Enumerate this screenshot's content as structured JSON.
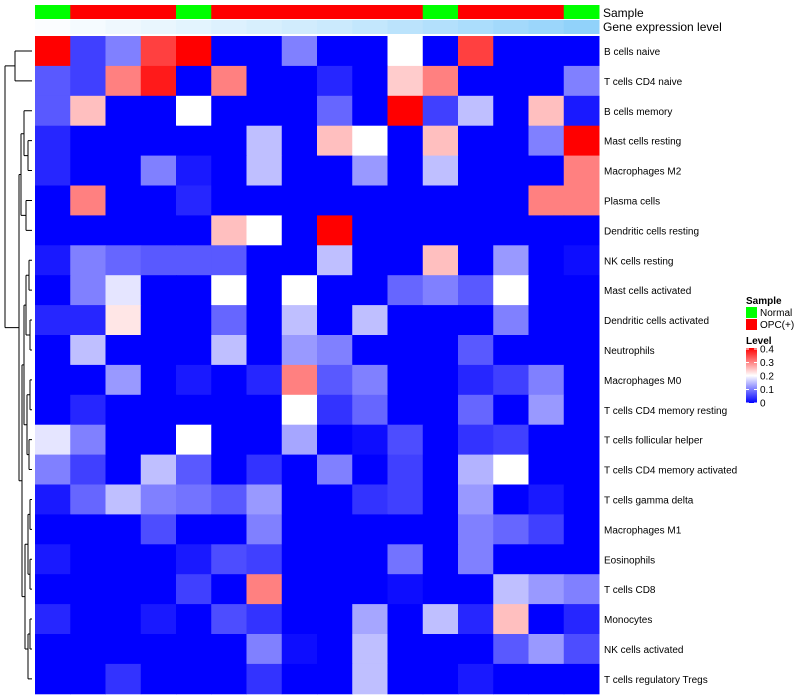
{
  "chart_data": {
    "type": "heatmap",
    "title": "",
    "annotation_tracks": [
      {
        "name": "Sample",
        "values": [
          "Normal",
          "OPC(+)",
          "OPC(+)",
          "OPC(+)",
          "Normal",
          "OPC(+)",
          "OPC(+)",
          "OPC(+)",
          "OPC(+)",
          "OPC(+)",
          "OPC(+)",
          "Normal",
          "OPC(+)",
          "OPC(+)",
          "OPC(+)",
          "Normal"
        ]
      },
      {
        "name": "Gene expression level",
        "values": [
          0.02,
          0.05,
          0.08,
          0.11,
          0.14,
          0.17,
          0.2,
          0.23,
          0.26,
          0.3,
          0.34,
          0.38,
          0.42,
          0.46,
          0.5,
          0.55
        ]
      }
    ],
    "rows": [
      "B cells naive",
      "T cells CD4 naive",
      "B cells memory",
      "Mast cells resting",
      "Macrophages M2",
      "Plasma cells",
      "Dendritic cells resting",
      "NK cells resting",
      "Mast cells activated",
      "Dendritic cells activated",
      "Neutrophils",
      "Macrophages M0",
      "T cells CD4 memory resting",
      "T cells follicular helper",
      "T cells CD4 memory activated",
      "T cells gamma delta",
      "Macrophages M1",
      "Eosinophils",
      "T cells CD8",
      "Monocytes",
      "NK cells activated",
      "T cells regulatory  Tregs"
    ],
    "values": [
      [
        0.4,
        0.05,
        0.1,
        0.35,
        0.4,
        0,
        0,
        0.1,
        0,
        0,
        0.2,
        0,
        0.35,
        0,
        0,
        0
      ],
      [
        0.07,
        0.05,
        0.3,
        0.38,
        0,
        0.3,
        0,
        0,
        0.03,
        0,
        0.24,
        0.3,
        0,
        0,
        0,
        0.1
      ],
      [
        0.07,
        0.25,
        0,
        0,
        0.2,
        0,
        0,
        0,
        0.08,
        0,
        0.4,
        0.05,
        0.15,
        0,
        0.25,
        0.02
      ],
      [
        0.03,
        0,
        0,
        0,
        0,
        0,
        0.15,
        0,
        0.25,
        0.2,
        0,
        0.25,
        0,
        0,
        0.1,
        0.4
      ],
      [
        0.03,
        0,
        0,
        0.1,
        0.02,
        0,
        0.15,
        0,
        0,
        0.12,
        0,
        0.15,
        0,
        0,
        0,
        0.3
      ],
      [
        0,
        0.3,
        0,
        0,
        0.03,
        0,
        0,
        0,
        0,
        0,
        0,
        0,
        0,
        0,
        0.3,
        0.3
      ],
      [
        0,
        0,
        0,
        0,
        0,
        0.25,
        0.2,
        0,
        0.4,
        0,
        0,
        0,
        0,
        0,
        0,
        0
      ],
      [
        0.02,
        0.1,
        0.08,
        0.07,
        0.07,
        0.07,
        0,
        0,
        0.15,
        0,
        0,
        0.25,
        0,
        0.12,
        0,
        0.01
      ],
      [
        0,
        0.1,
        0.18,
        0,
        0,
        0.2,
        0,
        0.2,
        0,
        0,
        0.08,
        0.1,
        0.07,
        0.2,
        0,
        0
      ],
      [
        0.03,
        0.03,
        0.22,
        0,
        0,
        0.08,
        0,
        0.15,
        0,
        0.15,
        0,
        0,
        0,
        0.1,
        0,
        0
      ],
      [
        0,
        0.15,
        0,
        0,
        0,
        0.15,
        0,
        0.12,
        0.1,
        0,
        0,
        0,
        0.07,
        0,
        0,
        0
      ],
      [
        0,
        0,
        0.12,
        0,
        0.02,
        0,
        0.03,
        0.3,
        0.07,
        0.1,
        0,
        0,
        0.03,
        0.05,
        0.1,
        0
      ],
      [
        0,
        0.03,
        0,
        0,
        0,
        0,
        0,
        0.2,
        0.04,
        0.08,
        0,
        0,
        0.08,
        0,
        0.12,
        0
      ],
      [
        0.18,
        0.1,
        0,
        0,
        0.2,
        0,
        0,
        0.13,
        0,
        0.01,
        0.06,
        0,
        0.04,
        0.05,
        0,
        0
      ],
      [
        0.1,
        0.05,
        0,
        0.15,
        0.07,
        0,
        0.04,
        0,
        0.1,
        0,
        0.05,
        0,
        0.14,
        0.2,
        0,
        0
      ],
      [
        0.02,
        0.08,
        0.15,
        0.1,
        0.09,
        0.07,
        0.12,
        0,
        0,
        0.04,
        0.05,
        0,
        0.12,
        0,
        0.02,
        0
      ],
      [
        0,
        0,
        0,
        0.06,
        0,
        0,
        0.1,
        0,
        0,
        0,
        0,
        0,
        0.1,
        0.08,
        0.05,
        0
      ],
      [
        0.02,
        0,
        0,
        0,
        0.02,
        0.06,
        0.05,
        0,
        0,
        0,
        0.09,
        0,
        0.1,
        0,
        0,
        0
      ],
      [
        0,
        0,
        0,
        0,
        0.05,
        0,
        0.3,
        0,
        0,
        0,
        0.01,
        0,
        0,
        0.15,
        0.12,
        0.1
      ],
      [
        0.03,
        0,
        0,
        0.02,
        0,
        0.06,
        0.04,
        0,
        0,
        0.13,
        0,
        0.15,
        0.03,
        0.25,
        0,
        0.03
      ],
      [
        0,
        0,
        0,
        0,
        0,
        0,
        0.1,
        0.01,
        0,
        0.15,
        0,
        0,
        0,
        0.07,
        0.12,
        0.06
      ],
      [
        0,
        0,
        0.04,
        0,
        0,
        0,
        0.04,
        0,
        0,
        0.15,
        0,
        0,
        0.02,
        0,
        0,
        0
      ]
    ],
    "labels": {
      "sample_track": "Sample",
      "level_track": "Gene expression level"
    },
    "legend": {
      "position": "right",
      "sample_title": "Sample",
      "sample_items": [
        {
          "label": "Normal",
          "color": "#00ff00"
        },
        {
          "label": "OPC(+)",
          "color": "#ff0000"
        }
      ],
      "level_title": "Level",
      "level_ticks": [
        "0.4",
        "0.3",
        "0.2",
        "0.1",
        "0"
      ]
    },
    "value_range": [
      0,
      0.4
    ],
    "colors": {
      "low": "#0000ff",
      "mid": "#ffffff",
      "high": "#ff0000",
      "track_low": "#ffffff",
      "track_high": "#87cefa",
      "dendrogram": "#000000"
    }
  }
}
